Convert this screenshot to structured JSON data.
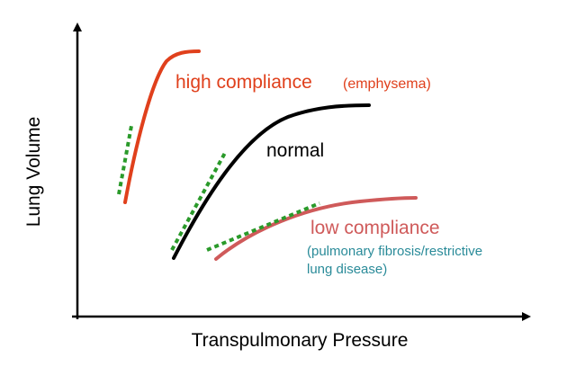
{
  "axes": {
    "x_label": "Transpulmonary Pressure",
    "y_label": "Lung Volume"
  },
  "curves": {
    "high": {
      "label": "high compliance",
      "note": "(emphysema)",
      "color": "#e0401c"
    },
    "normal": {
      "label": "normal",
      "color": "#000000"
    },
    "low": {
      "label": "low compliance",
      "note_line1": "(pulmonary fibrosis/restrictive",
      "note_line2": "lung disease)",
      "color": "#cf5a5a",
      "note_color": "#2a8b99"
    }
  },
  "tangent_color": "#2a9a2a"
}
